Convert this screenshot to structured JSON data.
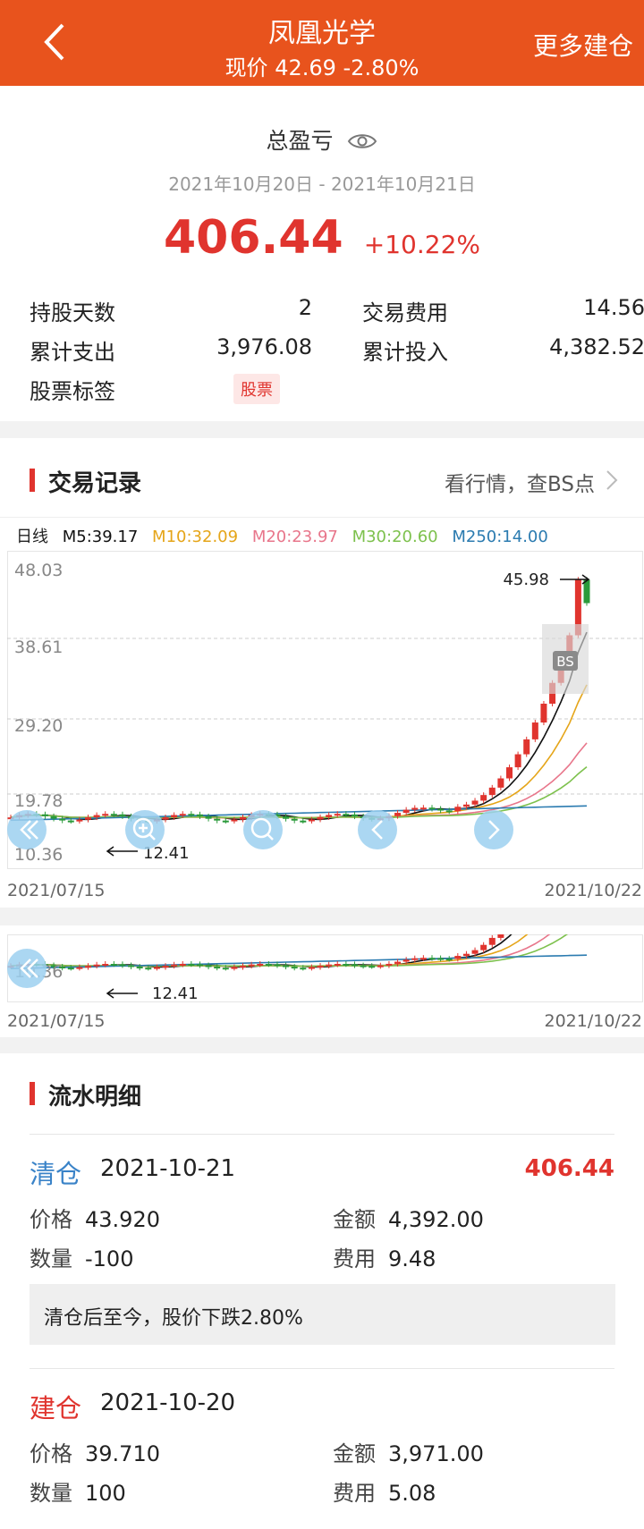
{
  "header": {
    "title": "凤凰光学",
    "subtitle": "现价 42.69 -2.80%",
    "right_label": "更多建仓"
  },
  "summary": {
    "title": "总盈亏",
    "date_range": "2021年10月20日 - 2021年10月21日",
    "profit": "406.44",
    "profit_pct": "+10.22%",
    "stats": [
      {
        "label": "持股天数",
        "value": "2",
        "label2": "交易费用",
        "value2": "14.56"
      },
      {
        "label": "累计支出",
        "value": "3,976.08",
        "label2": "累计投入",
        "value2": "4,382.52"
      }
    ],
    "tag_label": "股票标签",
    "tag": "股票"
  },
  "trade": {
    "title": "交易记录",
    "link": "看行情，查BS点",
    "ma": {
      "period": "日线",
      "m5": "M5:39.17",
      "m10": "M10:32.09",
      "m20": "M20:23.97",
      "m30": "M30:20.60",
      "m250": "M250:14.00"
    },
    "y_ticks": [
      "48.03",
      "38.61",
      "29.20",
      "19.78",
      "10.36"
    ],
    "high_label": "45.98",
    "low_label": "12.41",
    "bs_label": "BS",
    "date_start": "2021/07/15",
    "date_end": "2021/10/22"
  },
  "mini": {
    "low_value": "10.36",
    "low_label": "12.41",
    "date_start": "2021/07/15",
    "date_end": "2021/10/22"
  },
  "flow": {
    "title": "流水明细",
    "records": [
      {
        "type": "清仓",
        "date": "2021-10-21",
        "amount": "406.44",
        "price_label": "价格",
        "price": "43.920",
        "sum_label": "金额",
        "sum": "4,392.00",
        "qty_label": "数量",
        "qty": "-100",
        "fee_label": "费用",
        "fee": "9.48",
        "note": "清仓后至今，股价下跌2.80%"
      },
      {
        "type": "建仓",
        "date": "2021-10-20",
        "price_label": "价格",
        "price": "39.710",
        "sum_label": "金额",
        "sum": "3,971.00",
        "qty_label": "数量",
        "qty": "100",
        "fee_label": "费用",
        "fee": "5.08"
      }
    ]
  },
  "colors": {
    "brand": "#e8531d",
    "up": "#e0342e",
    "down": "#2a9a3a",
    "m5": "#111111",
    "m10": "#e5a519",
    "m20": "#e8768b",
    "m30": "#7dc14d",
    "m250": "#2b7bb0",
    "sell": "#3a83c8"
  }
}
